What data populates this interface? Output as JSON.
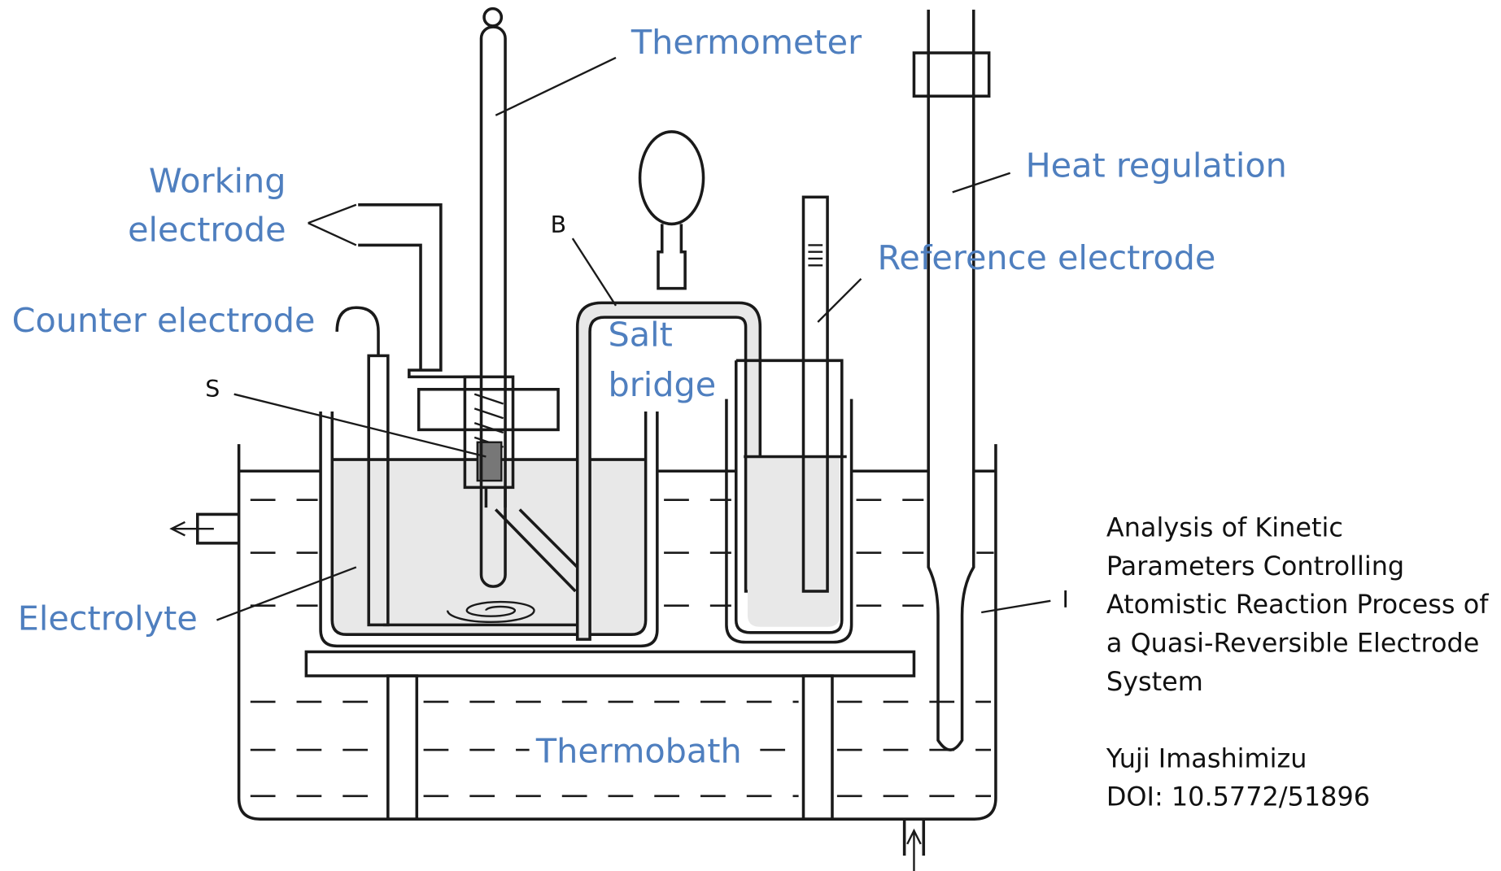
{
  "labels": {
    "thermometer": "Thermometer",
    "working_electrode": [
      "Working",
      "electrode"
    ],
    "counter_electrode": "Counter electrode",
    "heat_regulation": "Heat regulation",
    "reference_electrode": "Reference electrode",
    "salt_bridge": [
      "Salt",
      "bridge"
    ],
    "electrolyte": "Electrolyte",
    "thermobath": "Thermobath",
    "b": "B",
    "s": "S",
    "i": "I"
  },
  "caption": {
    "title_lines": [
      "Analysis of Kinetic",
      "Parameters Controlling",
      "Atomistic Reaction Process of",
      "a Quasi-Reversible Electrode",
      "System"
    ],
    "author": "Yuji Imashimizu",
    "doi": "DOI: 10.5772/51896"
  }
}
